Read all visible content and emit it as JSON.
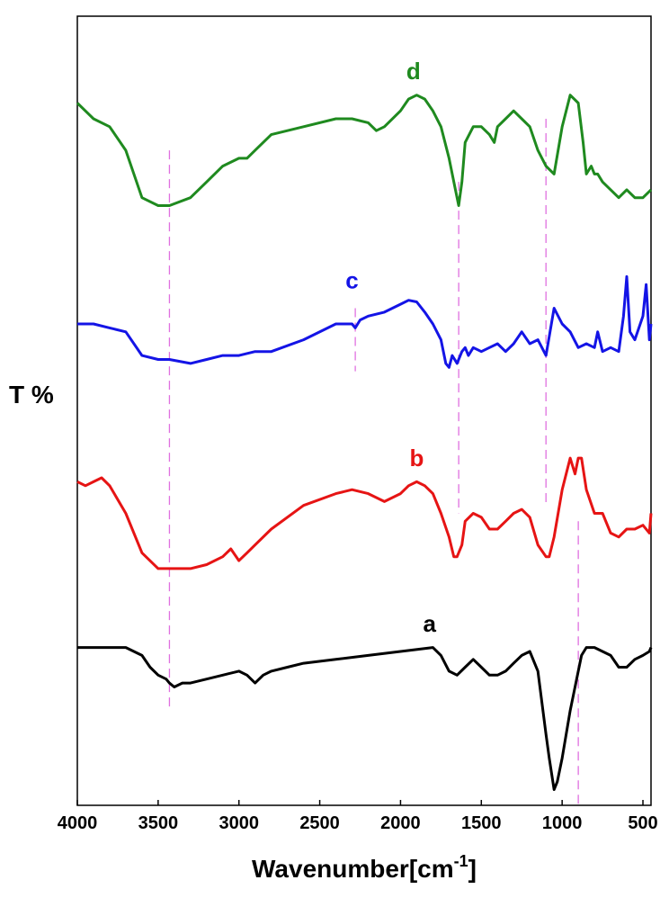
{
  "chart_data": {
    "type": "line",
    "title": "",
    "xlabel": "Wavenumber[cm",
    "xlabel_superscript": "-1",
    "xlabel_suffix": "]",
    "ylabel": "T %",
    "xlim": [
      4000,
      450
    ],
    "x_reversed": true,
    "x_ticks": [
      4000,
      3500,
      3000,
      2500,
      2000,
      1500,
      1000,
      500
    ],
    "y_ticks_shown": false,
    "grid": false,
    "legend": "inline series labels",
    "reference_lines": [
      {
        "x": 3430,
        "color": "#e070e0",
        "from": 0.12,
        "to": 0.83
      },
      {
        "x": 2280,
        "color": "#e070e0",
        "from": 0.55,
        "to": 0.63
      },
      {
        "x": 1640,
        "color": "#e070e0",
        "from": 0.37,
        "to": 0.79
      },
      {
        "x": 1100,
        "color": "#e070e0",
        "from": 0.38,
        "to": 0.87
      },
      {
        "x": 900,
        "color": "#e070e0",
        "from": 0.0,
        "to": 0.36
      }
    ],
    "series": [
      {
        "name": "d",
        "color": "#1f8a1f",
        "label_pos": [
          1920,
          0.92
        ],
        "x": [
          4000,
          3900,
          3800,
          3700,
          3600,
          3500,
          3430,
          3300,
          3200,
          3100,
          3000,
          2950,
          2900,
          2800,
          2600,
          2400,
          2300,
          2200,
          2150,
          2100,
          2000,
          1950,
          1900,
          1850,
          1800,
          1750,
          1700,
          1660,
          1640,
          1620,
          1600,
          1550,
          1500,
          1450,
          1420,
          1400,
          1350,
          1300,
          1250,
          1200,
          1150,
          1100,
          1050,
          1000,
          950,
          900,
          870,
          850,
          820,
          800,
          780,
          750,
          700,
          650,
          600,
          550,
          500,
          450
        ],
        "y": [
          0.89,
          0.87,
          0.86,
          0.83,
          0.77,
          0.76,
          0.76,
          0.77,
          0.79,
          0.81,
          0.82,
          0.82,
          0.83,
          0.85,
          0.86,
          0.87,
          0.87,
          0.865,
          0.855,
          0.86,
          0.88,
          0.895,
          0.9,
          0.895,
          0.88,
          0.86,
          0.82,
          0.78,
          0.76,
          0.79,
          0.84,
          0.86,
          0.86,
          0.85,
          0.84,
          0.86,
          0.87,
          0.88,
          0.87,
          0.86,
          0.83,
          0.81,
          0.8,
          0.86,
          0.9,
          0.89,
          0.84,
          0.8,
          0.81,
          0.8,
          0.8,
          0.79,
          0.78,
          0.77,
          0.78,
          0.77,
          0.77,
          0.78
        ]
      },
      {
        "name": "c",
        "color": "#1414e6",
        "label_pos": [
          2300,
          0.655
        ],
        "x": [
          4000,
          3900,
          3800,
          3700,
          3600,
          3500,
          3430,
          3300,
          3200,
          3100,
          3000,
          2900,
          2800,
          2600,
          2400,
          2300,
          2280,
          2250,
          2200,
          2100,
          2000,
          1950,
          1900,
          1850,
          1800,
          1750,
          1720,
          1700,
          1680,
          1650,
          1620,
          1600,
          1580,
          1550,
          1500,
          1450,
          1400,
          1350,
          1300,
          1250,
          1200,
          1150,
          1100,
          1050,
          1000,
          950,
          900,
          850,
          800,
          780,
          750,
          700,
          650,
          620,
          600,
          580,
          550,
          500,
          480,
          460,
          450
        ],
        "y": [
          0.61,
          0.61,
          0.605,
          0.6,
          0.57,
          0.565,
          0.565,
          0.56,
          0.565,
          0.57,
          0.57,
          0.575,
          0.575,
          0.59,
          0.61,
          0.61,
          0.605,
          0.615,
          0.62,
          0.625,
          0.635,
          0.64,
          0.638,
          0.625,
          0.61,
          0.59,
          0.56,
          0.555,
          0.57,
          0.56,
          0.575,
          0.58,
          0.57,
          0.58,
          0.575,
          0.58,
          0.585,
          0.575,
          0.585,
          0.6,
          0.585,
          0.59,
          0.57,
          0.63,
          0.61,
          0.6,
          0.58,
          0.585,
          0.58,
          0.6,
          0.575,
          0.58,
          0.575,
          0.62,
          0.67,
          0.6,
          0.59,
          0.62,
          0.66,
          0.59,
          0.61
        ]
      },
      {
        "name": "b",
        "color": "#e61414",
        "label_pos": [
          1900,
          0.43
        ],
        "x": [
          4000,
          3950,
          3900,
          3850,
          3800,
          3700,
          3600,
          3500,
          3430,
          3300,
          3200,
          3100,
          3050,
          3000,
          2950,
          2900,
          2800,
          2600,
          2400,
          2300,
          2200,
          2100,
          2000,
          1950,
          1900,
          1850,
          1800,
          1750,
          1700,
          1670,
          1650,
          1620,
          1600,
          1550,
          1500,
          1450,
          1400,
          1350,
          1300,
          1250,
          1200,
          1150,
          1100,
          1080,
          1050,
          1000,
          950,
          920,
          900,
          880,
          850,
          800,
          750,
          700,
          650,
          600,
          550,
          500,
          460,
          450
        ],
        "y": [
          0.41,
          0.405,
          0.41,
          0.415,
          0.405,
          0.37,
          0.32,
          0.3,
          0.3,
          0.3,
          0.305,
          0.315,
          0.325,
          0.31,
          0.32,
          0.33,
          0.35,
          0.38,
          0.395,
          0.4,
          0.395,
          0.385,
          0.395,
          0.405,
          0.41,
          0.405,
          0.395,
          0.37,
          0.34,
          0.315,
          0.315,
          0.33,
          0.36,
          0.37,
          0.365,
          0.35,
          0.35,
          0.36,
          0.37,
          0.375,
          0.365,
          0.33,
          0.315,
          0.315,
          0.34,
          0.4,
          0.44,
          0.42,
          0.44,
          0.44,
          0.4,
          0.37,
          0.37,
          0.345,
          0.34,
          0.35,
          0.35,
          0.355,
          0.345,
          0.37
        ]
      },
      {
        "name": "a",
        "color": "#000000",
        "label_pos": [
          1820,
          0.22
        ],
        "x": [
          4000,
          3900,
          3800,
          3700,
          3600,
          3550,
          3500,
          3450,
          3430,
          3400,
          3350,
          3300,
          3200,
          3100,
          3000,
          2950,
          2900,
          2850,
          2800,
          2700,
          2600,
          2400,
          2200,
          2000,
          1800,
          1750,
          1700,
          1650,
          1600,
          1550,
          1500,
          1450,
          1400,
          1350,
          1300,
          1250,
          1200,
          1150,
          1100,
          1080,
          1050,
          1030,
          1000,
          950,
          920,
          900,
          880,
          850,
          800,
          750,
          700,
          650,
          600,
          550,
          500,
          460,
          450
        ],
        "y": [
          0.2,
          0.2,
          0.2,
          0.2,
          0.19,
          0.175,
          0.165,
          0.16,
          0.155,
          0.15,
          0.155,
          0.155,
          0.16,
          0.165,
          0.17,
          0.165,
          0.155,
          0.165,
          0.17,
          0.175,
          0.18,
          0.185,
          0.19,
          0.195,
          0.2,
          0.19,
          0.17,
          0.165,
          0.175,
          0.185,
          0.175,
          0.165,
          0.165,
          0.17,
          0.18,
          0.19,
          0.195,
          0.17,
          0.09,
          0.06,
          0.02,
          0.03,
          0.06,
          0.12,
          0.15,
          0.17,
          0.19,
          0.2,
          0.2,
          0.195,
          0.19,
          0.175,
          0.175,
          0.185,
          0.19,
          0.195,
          0.2
        ]
      }
    ]
  }
}
